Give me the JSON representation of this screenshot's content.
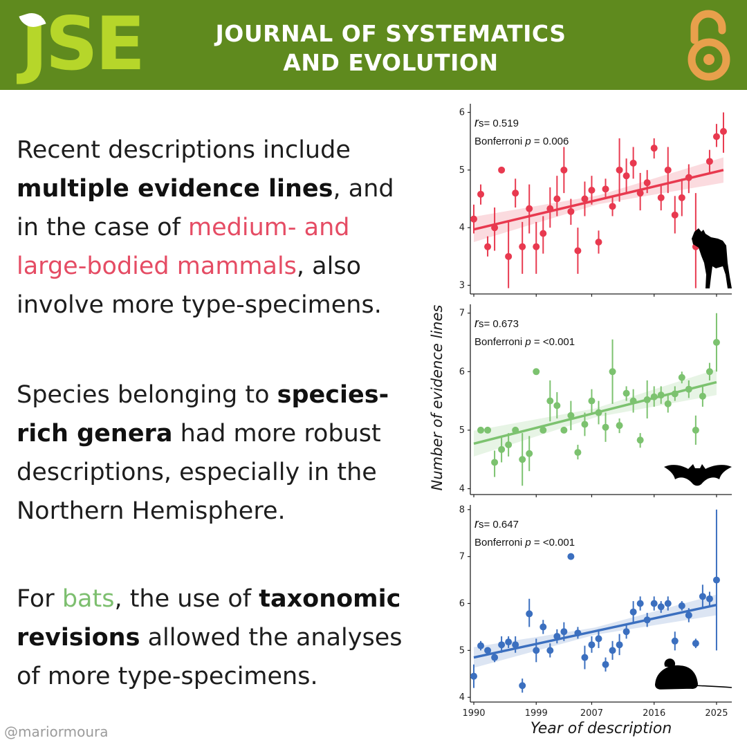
{
  "header": {
    "logo": "JSE",
    "journal_line1": "JOURNAL OF SYSTEMATICS",
    "journal_line2": "AND EVOLUTION",
    "bg_color": "#5f8a1e",
    "logo_color": "#b6d62a",
    "icon": "open-access-icon",
    "icon_color": "#e8a04c"
  },
  "text": {
    "p1": {
      "a": "Recent descriptions include",
      "b": "multiple evidence lines",
      "c": ", and in the case of ",
      "d": "medium- and large-bodied mammals",
      "e": ", also involve more type-specimens."
    },
    "p2": {
      "a": "Species belonging to ",
      "b": "species-rich genera",
      "c": " had more robust descriptions, especially in the Northern Hemisphere."
    },
    "p3": {
      "a": "For ",
      "b": "bats",
      "c": ", the use of ",
      "d": "taxonomic revisions",
      "e": " allowed the analyses of more type-specimens."
    },
    "highlight_pink": "#e54c64",
    "highlight_green": "#7dbf6f"
  },
  "footer": {
    "handle": "@mariormoura"
  },
  "chart_data": {
    "type": "scatter",
    "xlabel": "Year of description",
    "ylabel": "Number of evidence lines",
    "x_ticks": [
      1990,
      1999,
      2007,
      2016,
      2025
    ],
    "xlim": [
      1989.5,
      2027.2
    ],
    "panels": [
      {
        "name": "medium- and large-bodied mammals",
        "icon": "wolf-silhouette-icon",
        "color": "#e8394f",
        "rs_label": "s= 0.519",
        "p_prefix": "Bonferroni ",
        "p_label": " = 0.006",
        "ylim": [
          2.85,
          6.15
        ],
        "yticks": [
          3,
          4,
          5,
          6
        ],
        "trend": [
          3.97,
          5.0
        ],
        "points": [
          {
            "x": 1990,
            "y": 4.15,
            "lo": 3.9,
            "hi": 4.4
          },
          {
            "x": 1991,
            "y": 4.58,
            "lo": 4.4,
            "hi": 4.75
          },
          {
            "x": 1992,
            "y": 3.67,
            "lo": 3.5,
            "hi": 3.85
          },
          {
            "x": 1993,
            "y": 4.0,
            "lo": 3.6,
            "hi": 4.35
          },
          {
            "x": 1994,
            "y": 5.0,
            "lo": 5.0,
            "hi": 5.0
          },
          {
            "x": 1995,
            "y": 3.5,
            "lo": 2.95,
            "hi": 4.1
          },
          {
            "x": 1996,
            "y": 4.6,
            "lo": 4.35,
            "hi": 4.85
          },
          {
            "x": 1997,
            "y": 3.67,
            "lo": 3.2,
            "hi": 4.1
          },
          {
            "x": 1998,
            "y": 4.33,
            "lo": 3.9,
            "hi": 4.75
          },
          {
            "x": 1999,
            "y": 3.67,
            "lo": 3.2,
            "hi": 4.1
          },
          {
            "x": 2000,
            "y": 3.9,
            "lo": 3.55,
            "hi": 4.2
          },
          {
            "x": 2001,
            "y": 4.33,
            "lo": 4.0,
            "hi": 4.7
          },
          {
            "x": 2002,
            "y": 4.5,
            "lo": 4.2,
            "hi": 4.9
          },
          {
            "x": 2003,
            "y": 5.0,
            "lo": 4.6,
            "hi": 5.4
          },
          {
            "x": 2004,
            "y": 4.28,
            "lo": 4.05,
            "hi": 4.5
          },
          {
            "x": 2005,
            "y": 3.6,
            "lo": 3.2,
            "hi": 4.0
          },
          {
            "x": 2006,
            "y": 4.5,
            "lo": 4.2,
            "hi": 4.8
          },
          {
            "x": 2007,
            "y": 4.65,
            "lo": 4.4,
            "hi": 4.9
          },
          {
            "x": 2008,
            "y": 3.75,
            "lo": 3.55,
            "hi": 3.95
          },
          {
            "x": 2009,
            "y": 4.67,
            "lo": 4.5,
            "hi": 4.85
          },
          {
            "x": 2010,
            "y": 4.37,
            "lo": 4.2,
            "hi": 4.55
          },
          {
            "x": 2011,
            "y": 5.0,
            "lo": 4.45,
            "hi": 5.55
          },
          {
            "x": 2012,
            "y": 4.9,
            "lo": 4.6,
            "hi": 5.2
          },
          {
            "x": 2013,
            "y": 5.12,
            "lo": 4.85,
            "hi": 5.4
          },
          {
            "x": 2014,
            "y": 4.6,
            "lo": 4.3,
            "hi": 4.95
          },
          {
            "x": 2015,
            "y": 4.78,
            "lo": 4.6,
            "hi": 5.0
          },
          {
            "x": 2016,
            "y": 5.38,
            "lo": 5.2,
            "hi": 5.55
          },
          {
            "x": 2017,
            "y": 4.52,
            "lo": 4.3,
            "hi": 4.75
          },
          {
            "x": 2018,
            "y": 5.0,
            "lo": 4.6,
            "hi": 5.4
          },
          {
            "x": 2019,
            "y": 4.22,
            "lo": 3.9,
            "hi": 4.55
          },
          {
            "x": 2020,
            "y": 4.52,
            "lo": 4.2,
            "hi": 4.85
          },
          {
            "x": 2021,
            "y": 4.87,
            "lo": 4.6,
            "hi": 5.1
          },
          {
            "x": 2022,
            "y": 3.67,
            "lo": 2.95,
            "hi": 4.6
          },
          {
            "x": 2024,
            "y": 5.15,
            "lo": 4.95,
            "hi": 5.35
          },
          {
            "x": 2025,
            "y": 5.58,
            "lo": 5.4,
            "hi": 5.8
          },
          {
            "x": 2026,
            "y": 5.67,
            "lo": 5.3,
            "hi": 6.0
          }
        ]
      },
      {
        "name": "bats",
        "icon": "bat-silhouette-icon",
        "color": "#7cc26f",
        "rs_label": "s= 0.673",
        "p_prefix": "Bonferroni ",
        "p_label": " = <0.001",
        "ylim": [
          3.9,
          7.15
        ],
        "yticks": [
          4,
          5,
          6,
          7
        ],
        "trend": [
          4.77,
          5.82
        ],
        "points": [
          {
            "x": 1991,
            "y": 5.0,
            "lo": 5.0,
            "hi": 5.0
          },
          {
            "x": 1992,
            "y": 5.0,
            "lo": 5.0,
            "hi": 5.0
          },
          {
            "x": 1993,
            "y": 4.45,
            "lo": 4.2,
            "hi": 4.65
          },
          {
            "x": 1994,
            "y": 4.67,
            "lo": 4.45,
            "hi": 4.9
          },
          {
            "x": 1995,
            "y": 4.75,
            "lo": 4.55,
            "hi": 4.95
          },
          {
            "x": 1996,
            "y": 5.0,
            "lo": 5.0,
            "hi": 5.0
          },
          {
            "x": 1997,
            "y": 4.5,
            "lo": 4.05,
            "hi": 4.95
          },
          {
            "x": 1998,
            "y": 4.6,
            "lo": 4.3,
            "hi": 4.9
          },
          {
            "x": 1999,
            "y": 6.0,
            "lo": 6.0,
            "hi": 6.0
          },
          {
            "x": 2000,
            "y": 5.0,
            "lo": 5.0,
            "hi": 5.0
          },
          {
            "x": 2001,
            "y": 5.5,
            "lo": 5.15,
            "hi": 5.85
          },
          {
            "x": 2002,
            "y": 5.42,
            "lo": 5.2,
            "hi": 5.65
          },
          {
            "x": 2003,
            "y": 5.0,
            "lo": 5.0,
            "hi": 5.0
          },
          {
            "x": 2004,
            "y": 5.25,
            "lo": 5.0,
            "hi": 5.5
          },
          {
            "x": 2005,
            "y": 4.62,
            "lo": 4.5,
            "hi": 4.75
          },
          {
            "x": 2006,
            "y": 5.1,
            "lo": 4.9,
            "hi": 5.3
          },
          {
            "x": 2007,
            "y": 5.5,
            "lo": 5.3,
            "hi": 5.7
          },
          {
            "x": 2008,
            "y": 5.3,
            "lo": 5.1,
            "hi": 5.5
          },
          {
            "x": 2009,
            "y": 5.05,
            "lo": 4.8,
            "hi": 5.3
          },
          {
            "x": 2010,
            "y": 6.0,
            "lo": 5.45,
            "hi": 6.55
          },
          {
            "x": 2011,
            "y": 5.08,
            "lo": 4.95,
            "hi": 5.2
          },
          {
            "x": 2012,
            "y": 5.63,
            "lo": 5.5,
            "hi": 5.75
          },
          {
            "x": 2013,
            "y": 5.5,
            "lo": 5.3,
            "hi": 5.7
          },
          {
            "x": 2014,
            "y": 4.83,
            "lo": 4.7,
            "hi": 4.95
          },
          {
            "x": 2015,
            "y": 5.52,
            "lo": 5.2,
            "hi": 5.85
          },
          {
            "x": 2016,
            "y": 5.57,
            "lo": 5.4,
            "hi": 5.75
          },
          {
            "x": 2017,
            "y": 5.6,
            "lo": 5.45,
            "hi": 5.75
          },
          {
            "x": 2018,
            "y": 5.45,
            "lo": 5.3,
            "hi": 5.6
          },
          {
            "x": 2019,
            "y": 5.62,
            "lo": 5.5,
            "hi": 5.75
          },
          {
            "x": 2020,
            "y": 5.9,
            "lo": 5.8,
            "hi": 6.0
          },
          {
            "x": 2021,
            "y": 5.7,
            "lo": 5.55,
            "hi": 5.85
          },
          {
            "x": 2022,
            "y": 5.0,
            "lo": 4.75,
            "hi": 5.25
          },
          {
            "x": 2023,
            "y": 5.58,
            "lo": 5.4,
            "hi": 5.75
          },
          {
            "x": 2024,
            "y": 6.0,
            "lo": 5.85,
            "hi": 6.15
          },
          {
            "x": 2025,
            "y": 6.5,
            "lo": 6.0,
            "hi": 7.0
          }
        ]
      },
      {
        "name": "small mammals",
        "icon": "mouse-silhouette-icon",
        "color": "#3b6fbf",
        "rs_label": "s= 0.647",
        "p_prefix": "Bonferroni ",
        "p_label": " = <0.001",
        "ylim": [
          3.9,
          8.1
        ],
        "yticks": [
          4,
          5,
          6,
          7,
          8
        ],
        "trend": [
          4.85,
          5.97
        ],
        "points": [
          {
            "x": 1990,
            "y": 4.45,
            "lo": 4.2,
            "hi": 4.7
          },
          {
            "x": 1991,
            "y": 5.1,
            "lo": 5.0,
            "hi": 5.2
          },
          {
            "x": 1992,
            "y": 5.0,
            "lo": 5.0,
            "hi": 5.0
          },
          {
            "x": 1993,
            "y": 4.85,
            "lo": 4.75,
            "hi": 4.95
          },
          {
            "x": 1994,
            "y": 5.12,
            "lo": 4.95,
            "hi": 5.3
          },
          {
            "x": 1995,
            "y": 5.18,
            "lo": 5.05,
            "hi": 5.3
          },
          {
            "x": 1996,
            "y": 5.12,
            "lo": 4.95,
            "hi": 5.3
          },
          {
            "x": 1997,
            "y": 4.25,
            "lo": 4.1,
            "hi": 4.4
          },
          {
            "x": 1998,
            "y": 5.78,
            "lo": 5.5,
            "hi": 6.1
          },
          {
            "x": 1999,
            "y": 5.0,
            "lo": 4.75,
            "hi": 5.25
          },
          {
            "x": 2000,
            "y": 5.5,
            "lo": 5.35,
            "hi": 5.65
          },
          {
            "x": 2001,
            "y": 5.0,
            "lo": 4.85,
            "hi": 5.15
          },
          {
            "x": 2002,
            "y": 5.3,
            "lo": 5.15,
            "hi": 5.45
          },
          {
            "x": 2003,
            "y": 5.4,
            "lo": 5.2,
            "hi": 5.6
          },
          {
            "x": 2004,
            "y": 7.0,
            "lo": 7.0,
            "hi": 7.0
          },
          {
            "x": 2005,
            "y": 5.37,
            "lo": 5.25,
            "hi": 5.5
          },
          {
            "x": 2006,
            "y": 4.85,
            "lo": 4.6,
            "hi": 5.1
          },
          {
            "x": 2007,
            "y": 5.12,
            "lo": 4.95,
            "hi": 5.3
          },
          {
            "x": 2008,
            "y": 5.25,
            "lo": 5.05,
            "hi": 5.45
          },
          {
            "x": 2009,
            "y": 4.7,
            "lo": 4.55,
            "hi": 4.85
          },
          {
            "x": 2010,
            "y": 5.0,
            "lo": 4.8,
            "hi": 5.2
          },
          {
            "x": 2011,
            "y": 5.12,
            "lo": 4.9,
            "hi": 5.35
          },
          {
            "x": 2012,
            "y": 5.4,
            "lo": 5.25,
            "hi": 5.55
          },
          {
            "x": 2013,
            "y": 5.82,
            "lo": 5.6,
            "hi": 6.05
          },
          {
            "x": 2014,
            "y": 6.0,
            "lo": 5.85,
            "hi": 6.15
          },
          {
            "x": 2015,
            "y": 5.65,
            "lo": 5.5,
            "hi": 5.8
          },
          {
            "x": 2016,
            "y": 6.0,
            "lo": 5.85,
            "hi": 6.15
          },
          {
            "x": 2017,
            "y": 5.93,
            "lo": 5.8,
            "hi": 6.05
          },
          {
            "x": 2018,
            "y": 6.0,
            "lo": 5.85,
            "hi": 6.15
          },
          {
            "x": 2019,
            "y": 5.2,
            "lo": 5.0,
            "hi": 5.4
          },
          {
            "x": 2020,
            "y": 5.95,
            "lo": 5.85,
            "hi": 6.05
          },
          {
            "x": 2021,
            "y": 5.75,
            "lo": 5.6,
            "hi": 5.9
          },
          {
            "x": 2022,
            "y": 5.15,
            "lo": 5.05,
            "hi": 5.25
          },
          {
            "x": 2023,
            "y": 6.15,
            "lo": 5.9,
            "hi": 6.4
          },
          {
            "x": 2024,
            "y": 6.1,
            "lo": 5.95,
            "hi": 6.25
          },
          {
            "x": 2025,
            "y": 6.5,
            "lo": 5.0,
            "hi": 8.0
          }
        ]
      }
    ]
  }
}
